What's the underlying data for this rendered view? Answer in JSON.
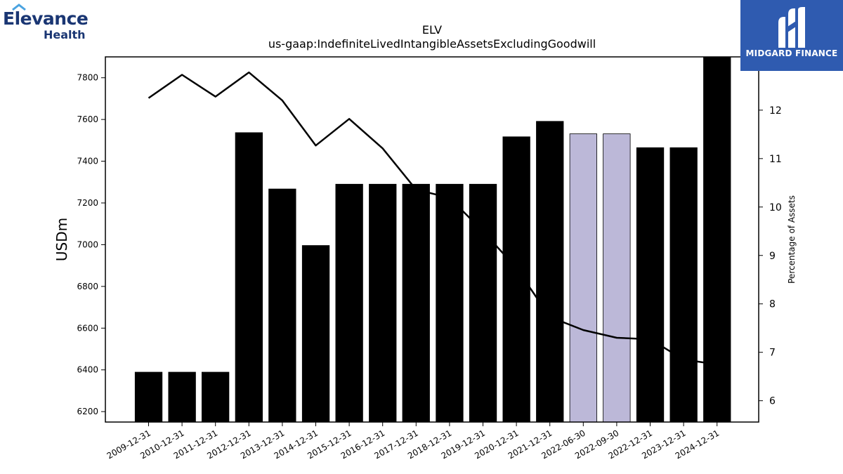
{
  "logos": {
    "left_line1": "Elevance",
    "left_line2": "Health",
    "right_name": "MIDGARD FINANCE"
  },
  "colors": {
    "bar_default": "#000000",
    "bar_highlight": "#bcb8d8",
    "line": "#000000",
    "brand_left": "#1a3673",
    "brand_left_accent": "#4aa3e0",
    "brand_right_bg": "#2f5bb0"
  },
  "chart_data": {
    "type": "bar",
    "title": "ELV",
    "subtitle": "us-gaap:IndefiniteLivedIntangibleAssetsExcludingGoodwill",
    "ylabel": "USDm",
    "y2label": "Percentage of Assets",
    "ylim": [
      6150,
      7900
    ],
    "y2lim": [
      5.56,
      13.1
    ],
    "yticks": [
      6200,
      6400,
      6600,
      6800,
      7000,
      7200,
      7400,
      7600,
      7800
    ],
    "y2ticks": [
      6,
      7,
      8,
      9,
      10,
      11,
      12
    ],
    "categories": [
      "2009-12-31",
      "2010-12-31",
      "2011-12-31",
      "2012-12-31",
      "2013-12-31",
      "2014-12-31",
      "2015-12-31",
      "2016-12-31",
      "2017-12-31",
      "2018-12-31",
      "2019-12-31",
      "2020-12-31",
      "2021-12-31",
      "2022-06-30",
      "2022-09-30",
      "2022-12-31",
      "2023-12-31",
      "2024-12-31"
    ],
    "series": [
      {
        "type": "bar",
        "axis": "left",
        "values": [
          6389,
          6389,
          6389,
          7537,
          7267,
          6996,
          7290,
          7290,
          7290,
          7290,
          7290,
          7517,
          7591,
          7531,
          7531,
          7465,
          7465,
          7900
        ],
        "highlight": [
          false,
          false,
          false,
          false,
          false,
          false,
          false,
          false,
          false,
          false,
          false,
          false,
          false,
          true,
          true,
          false,
          false,
          false
        ]
      },
      {
        "type": "line",
        "axis": "right",
        "values": [
          12.25,
          12.73,
          12.28,
          12.78,
          12.2,
          11.27,
          11.82,
          11.21,
          10.36,
          10.19,
          9.5,
          8.74,
          7.73,
          7.46,
          7.3,
          7.27,
          6.85,
          6.75
        ]
      }
    ]
  }
}
